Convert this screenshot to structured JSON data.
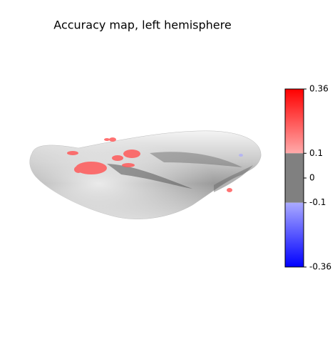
{
  "chart_data": {
    "type": "surface",
    "title": "Accuracy map, left hemisphere",
    "colorbar": {
      "lim": [
        -0.36,
        0.36
      ],
      "ticks": [
        -0.36,
        -0.1,
        0,
        0.1,
        0.36
      ],
      "threshold": 0.1,
      "colors": {
        "max": "#ff0000",
        "pos_threshold": "#ffaaaa",
        "below_threshold": "#808080",
        "neg_threshold": "#aaaaff",
        "min": "#0000ff"
      }
    }
  }
}
